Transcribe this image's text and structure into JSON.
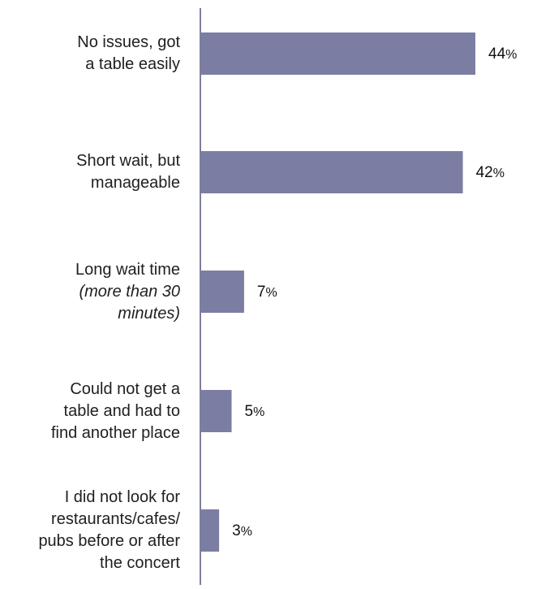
{
  "chart_data": {
    "type": "bar",
    "orientation": "horizontal",
    "categories": [
      {
        "lines": [
          {
            "text": "No issues, got",
            "italic": false
          },
          {
            "text": "a table easily",
            "italic": false
          }
        ]
      },
      {
        "lines": [
          {
            "text": "Short wait, but",
            "italic": false
          },
          {
            "text": "manageable",
            "italic": false
          }
        ]
      },
      {
        "lines": [
          {
            "text": "Long wait time",
            "italic": false
          },
          {
            "text": "(more than 30",
            "italic": true
          },
          {
            "text": "minutes)",
            "italic": true
          }
        ]
      },
      {
        "lines": [
          {
            "text": "Could not get a",
            "italic": false
          },
          {
            "text": "table and had to",
            "italic": false
          },
          {
            "text": "find another place",
            "italic": false
          }
        ]
      },
      {
        "lines": [
          {
            "text": "I did not look for",
            "italic": false
          },
          {
            "text": "restaurants/cafes/",
            "italic": false
          },
          {
            "text": "pubs before or after",
            "italic": false
          },
          {
            "text": "the concert",
            "italic": false
          }
        ]
      }
    ],
    "values": [
      44,
      42,
      7,
      5,
      3
    ],
    "value_suffix": "%",
    "xlim": [
      0,
      46
    ],
    "grid": false,
    "colors": {
      "bar": "#7c7da3",
      "axis": "#7d7f9c"
    }
  }
}
